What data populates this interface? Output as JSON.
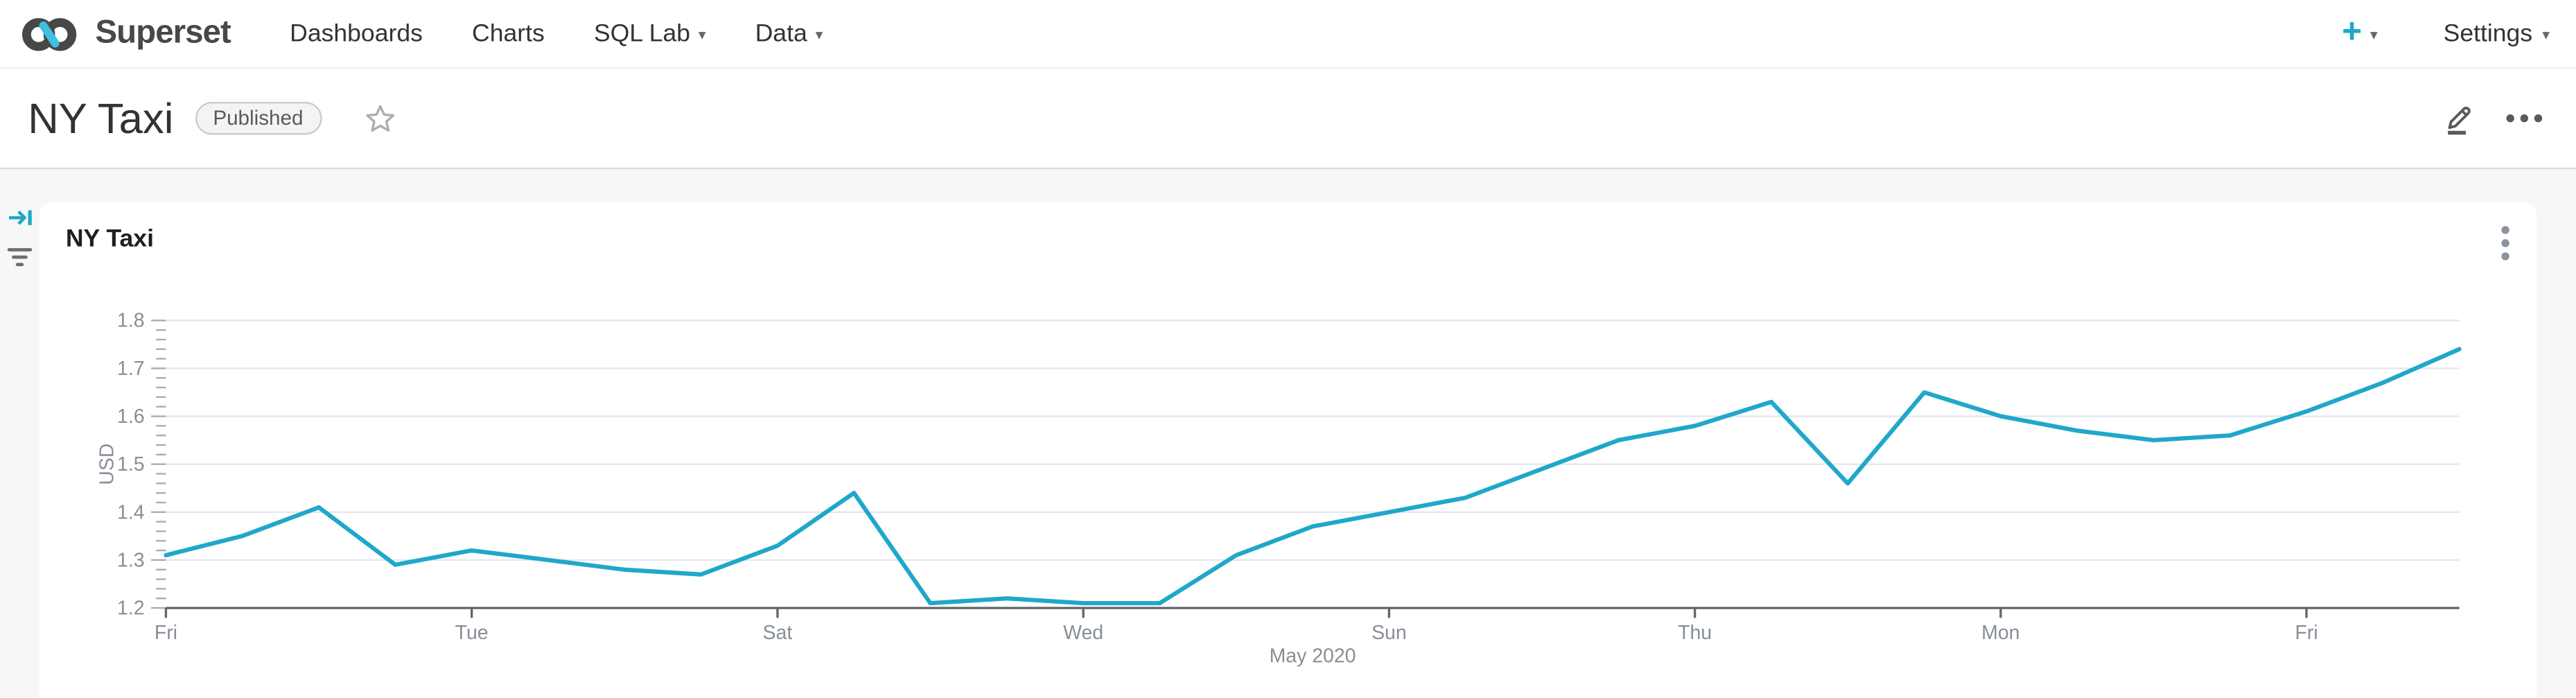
{
  "navbar": {
    "brand": "Superset",
    "items": [
      {
        "label": "Dashboards",
        "caret": false
      },
      {
        "label": "Charts",
        "caret": false
      },
      {
        "label": "SQL Lab",
        "caret": true
      },
      {
        "label": "Data",
        "caret": true
      }
    ],
    "plus_label": "+",
    "settings_label": "Settings"
  },
  "icons": {
    "caret_down": "▾",
    "right": [
      "plus-icon",
      "caret-down-icon"
    ],
    "header_icons": [
      "star-icon",
      "pencil-edit-icon",
      "ellipsis-icon"
    ],
    "gutter_icons": [
      "expand-filter-bar-icon",
      "filter-icon"
    ]
  },
  "header": {
    "title": "NY Taxi",
    "badge_label": "Published"
  },
  "card": {
    "title": "NY Taxi"
  },
  "colors": {
    "accent": "#20A7C9",
    "line": "#20A7C9",
    "grid": "#E3E7F0",
    "axis_text": "#878E98",
    "axis_line": "#60656E",
    "minor_tick": "#A6ABB5",
    "page_bg": "#F7F7F7",
    "card_bg": "#FFFFFF"
  },
  "chart_data": {
    "type": "line",
    "title": "NY Taxi",
    "ylabel": "USD",
    "x_axis_label": "May 2020",
    "x_tick_labels": [
      "Fri",
      "Tue",
      "Sat",
      "Wed",
      "Sun",
      "Thu",
      "Mon",
      "Fri"
    ],
    "x_tick_dates": [
      1,
      5,
      9,
      13,
      17,
      21,
      25,
      29
    ],
    "y_ticks": [
      1.2,
      1.3,
      1.4,
      1.5,
      1.6,
      1.7,
      1.8
    ],
    "ylim": [
      1.2,
      1.8
    ],
    "grid": true,
    "legend": false,
    "series": [
      {
        "name": "USD",
        "color": "#20A7C9",
        "x_dates": [
          1,
          2,
          3,
          4,
          5,
          6,
          7,
          8,
          9,
          10,
          11,
          12,
          13,
          14,
          15,
          16,
          17,
          18,
          19,
          20,
          21,
          22,
          23,
          24,
          25,
          26,
          27,
          28,
          29,
          30,
          31
        ],
        "values": [
          1.31,
          1.35,
          1.41,
          1.29,
          1.32,
          1.3,
          1.28,
          1.27,
          1.33,
          1.44,
          1.21,
          1.22,
          1.21,
          1.21,
          1.31,
          1.37,
          1.4,
          1.43,
          1.49,
          1.55,
          1.58,
          1.63,
          1.46,
          1.65,
          1.6,
          1.57,
          1.55,
          1.56,
          1.61,
          1.67,
          1.74
        ]
      }
    ]
  }
}
